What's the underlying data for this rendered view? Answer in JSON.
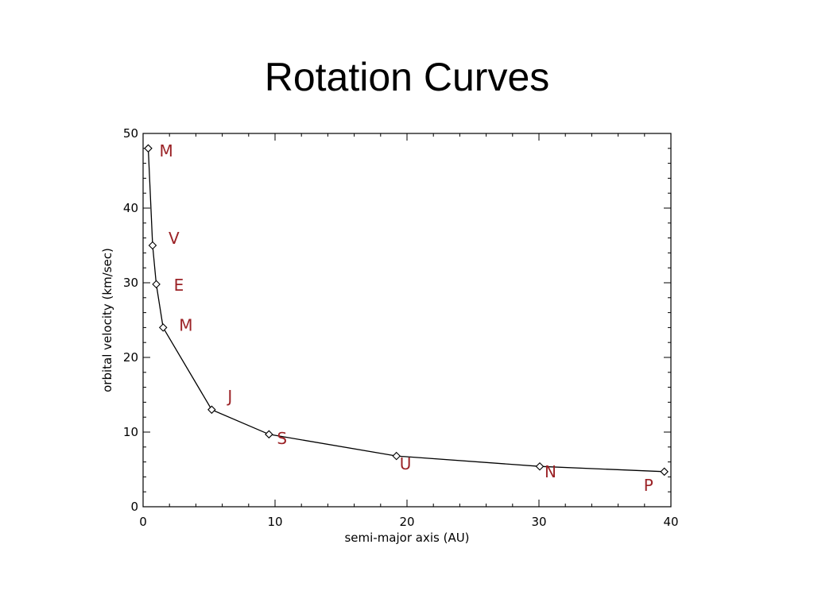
{
  "slide": {
    "title": "Rotation Curves"
  },
  "colors": {
    "label": "#9b2226",
    "line": "#000000",
    "frame": "#000000"
  },
  "chart_data": {
    "type": "line",
    "title": "",
    "xlabel": "semi-major axis (AU)",
    "ylabel": "orbital velocity (km/sec)",
    "xlim": [
      0,
      40
    ],
    "ylim": [
      0,
      50
    ],
    "xticks": [
      0,
      10,
      20,
      30,
      40
    ],
    "yticks": [
      0,
      10,
      20,
      30,
      40,
      50
    ],
    "grid": false,
    "series": [
      {
        "x": [
          0.39,
          0.72,
          1.0,
          1.52,
          5.2,
          9.54,
          19.2,
          30.06,
          39.5
        ],
        "y": [
          48,
          35,
          29.8,
          24,
          13,
          9.7,
          6.8,
          5.4,
          4.7
        ],
        "point_labels": [
          "M",
          "V",
          "E",
          "M",
          "J",
          "S",
          "U",
          "N",
          "P"
        ]
      }
    ]
  }
}
